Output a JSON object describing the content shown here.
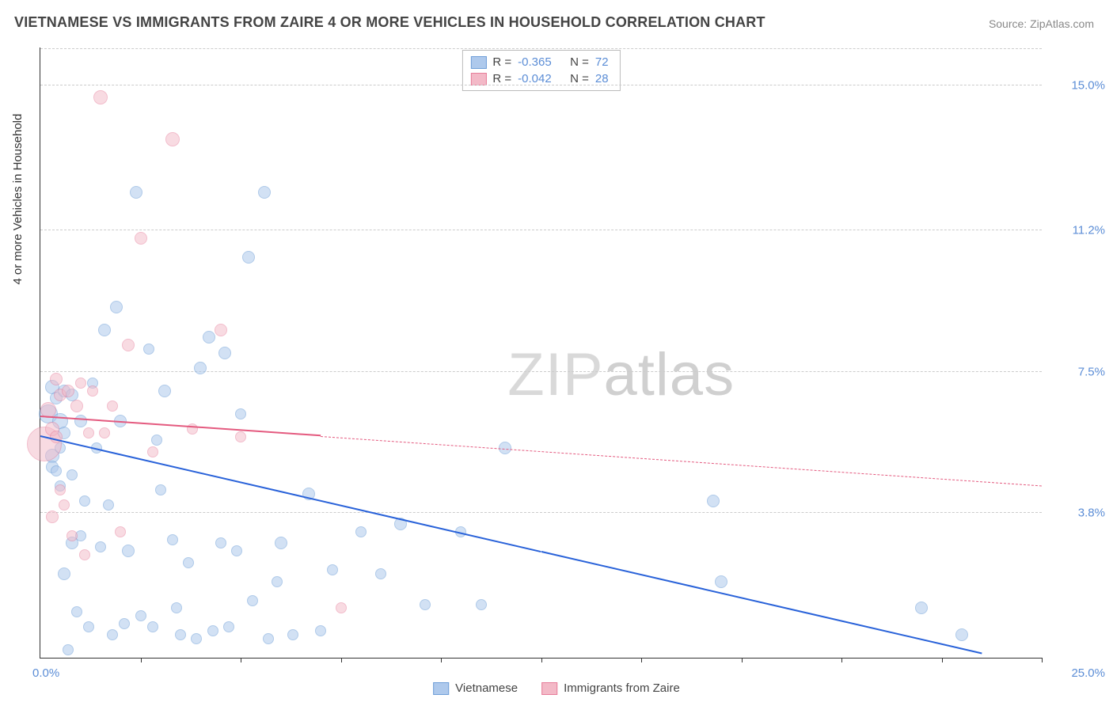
{
  "title": "VIETNAMESE VS IMMIGRANTS FROM ZAIRE 4 OR MORE VEHICLES IN HOUSEHOLD CORRELATION CHART",
  "source": "Source: ZipAtlas.com",
  "ylabel": "4 or more Vehicles in Household",
  "watermark_a": "ZIP",
  "watermark_b": "atlas",
  "xlim": [
    0,
    25
  ],
  "ylim": [
    0,
    16
  ],
  "xticks": [
    2.5,
    5,
    7.5,
    10,
    12.5,
    15,
    17.5,
    20,
    22.5,
    25
  ],
  "yticks": [
    {
      "v": 3.8,
      "label": "3.8%"
    },
    {
      "v": 7.5,
      "label": "7.5%"
    },
    {
      "v": 11.2,
      "label": "11.2%"
    },
    {
      "v": 15.0,
      "label": "15.0%"
    }
  ],
  "origin_label": "0.0%",
  "xmax_label": "25.0%",
  "series": [
    {
      "name": "Vietnamese",
      "fill": "#aec9ec",
      "stroke": "#6f9fd8",
      "fill_opacity": 0.55,
      "R": "-0.365",
      "N": "72",
      "trend": {
        "x1": 0,
        "y1": 5.8,
        "x2": 23.5,
        "y2": 0.1,
        "color": "#2962d9",
        "solid_until": 12.5,
        "dash_after": false
      },
      "base_radius": 8,
      "points": [
        [
          0.2,
          6.4,
          12
        ],
        [
          0.3,
          5.3,
          9
        ],
        [
          0.3,
          5.0,
          8
        ],
        [
          0.3,
          7.1,
          9
        ],
        [
          0.4,
          6.8,
          8
        ],
        [
          0.4,
          4.9,
          7
        ],
        [
          0.5,
          6.2,
          10
        ],
        [
          0.5,
          5.5,
          7
        ],
        [
          0.5,
          4.5,
          7
        ],
        [
          0.6,
          7.0,
          8
        ],
        [
          0.6,
          2.2,
          8
        ],
        [
          0.6,
          5.9,
          8
        ],
        [
          0.7,
          0.2,
          7
        ],
        [
          0.8,
          3.0,
          8
        ],
        [
          0.8,
          4.8,
          7
        ],
        [
          0.8,
          6.9,
          8
        ],
        [
          0.9,
          1.2,
          7
        ],
        [
          1.0,
          3.2,
          7
        ],
        [
          1.0,
          6.2,
          8
        ],
        [
          1.1,
          4.1,
          7
        ],
        [
          1.2,
          0.8,
          7
        ],
        [
          1.3,
          7.2,
          7
        ],
        [
          1.4,
          5.5,
          7
        ],
        [
          1.5,
          2.9,
          7
        ],
        [
          1.6,
          8.6,
          8
        ],
        [
          1.7,
          4.0,
          7
        ],
        [
          1.8,
          0.6,
          7
        ],
        [
          1.9,
          9.2,
          8
        ],
        [
          2.0,
          6.2,
          8
        ],
        [
          2.1,
          0.9,
          7
        ],
        [
          2.2,
          2.8,
          8
        ],
        [
          2.4,
          12.2,
          8
        ],
        [
          2.5,
          1.1,
          7
        ],
        [
          2.7,
          8.1,
          7
        ],
        [
          2.8,
          0.8,
          7
        ],
        [
          2.9,
          5.7,
          7
        ],
        [
          3.0,
          4.4,
          7
        ],
        [
          3.1,
          7.0,
          8
        ],
        [
          3.3,
          3.1,
          7
        ],
        [
          3.4,
          1.3,
          7
        ],
        [
          3.5,
          0.6,
          7
        ],
        [
          3.7,
          2.5,
          7
        ],
        [
          3.9,
          0.5,
          7
        ],
        [
          4.0,
          7.6,
          8
        ],
        [
          4.2,
          8.4,
          8
        ],
        [
          4.3,
          0.7,
          7
        ],
        [
          4.5,
          3.0,
          7
        ],
        [
          4.6,
          8.0,
          8
        ],
        [
          4.7,
          0.8,
          7
        ],
        [
          4.9,
          2.8,
          7
        ],
        [
          5.0,
          6.4,
          7
        ],
        [
          5.2,
          10.5,
          8
        ],
        [
          5.3,
          1.5,
          7
        ],
        [
          5.6,
          12.2,
          8
        ],
        [
          5.7,
          0.5,
          7
        ],
        [
          5.9,
          2.0,
          7
        ],
        [
          6.0,
          3.0,
          8
        ],
        [
          6.3,
          0.6,
          7
        ],
        [
          6.7,
          4.3,
          8
        ],
        [
          7.0,
          0.7,
          7
        ],
        [
          7.3,
          2.3,
          7
        ],
        [
          8.0,
          3.3,
          7
        ],
        [
          8.5,
          2.2,
          7
        ],
        [
          9.0,
          3.5,
          8
        ],
        [
          9.6,
          1.4,
          7
        ],
        [
          10.5,
          3.3,
          7
        ],
        [
          11.0,
          1.4,
          7
        ],
        [
          11.6,
          5.5,
          8
        ],
        [
          16.8,
          4.1,
          8
        ],
        [
          17.0,
          2.0,
          8
        ],
        [
          22.0,
          1.3,
          8
        ],
        [
          23.0,
          0.6,
          8
        ]
      ]
    },
    {
      "name": "Immigrants from Zaire",
      "fill": "#f3b9c7",
      "stroke": "#e77d9a",
      "fill_opacity": 0.5,
      "R": "-0.042",
      "N": "28",
      "trend": {
        "x1": 0,
        "y1": 6.3,
        "x2": 25,
        "y2": 4.5,
        "color": "#e45a7f",
        "solid_until": 7.0,
        "dash_after": true
      },
      "base_radius": 8,
      "points": [
        [
          0.1,
          5.6,
          22
        ],
        [
          0.2,
          6.5,
          10
        ],
        [
          0.3,
          3.7,
          8
        ],
        [
          0.3,
          6.0,
          9
        ],
        [
          0.4,
          7.3,
          8
        ],
        [
          0.4,
          5.8,
          8
        ],
        [
          0.5,
          4.4,
          7
        ],
        [
          0.5,
          6.9,
          8
        ],
        [
          0.6,
          4.0,
          7
        ],
        [
          0.7,
          7.0,
          8
        ],
        [
          0.8,
          3.2,
          7
        ],
        [
          0.9,
          6.6,
          8
        ],
        [
          1.0,
          7.2,
          7
        ],
        [
          1.1,
          2.7,
          7
        ],
        [
          1.2,
          5.9,
          7
        ],
        [
          1.3,
          7.0,
          7
        ],
        [
          1.5,
          14.7,
          9
        ],
        [
          1.6,
          5.9,
          7
        ],
        [
          1.8,
          6.6,
          7
        ],
        [
          2.0,
          3.3,
          7
        ],
        [
          2.2,
          8.2,
          8
        ],
        [
          2.5,
          11.0,
          8
        ],
        [
          2.8,
          5.4,
          7
        ],
        [
          3.3,
          13.6,
          9
        ],
        [
          3.8,
          6.0,
          7
        ],
        [
          4.5,
          8.6,
          8
        ],
        [
          5.0,
          5.8,
          7
        ],
        [
          7.5,
          1.3,
          7
        ]
      ]
    }
  ],
  "legend": {
    "R_label": "R =",
    "N_label": "N ="
  }
}
